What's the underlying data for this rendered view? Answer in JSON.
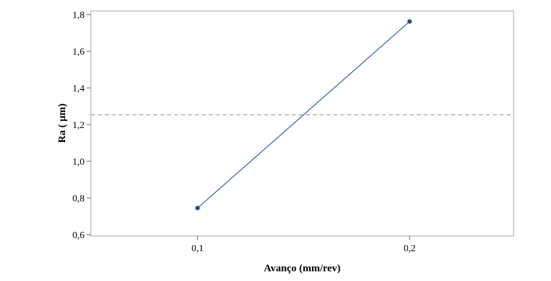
{
  "chart_data": {
    "type": "line",
    "title": "",
    "xlabel": "Avanço (mm/rev)",
    "ylabel": "Ra ( µm)",
    "categories": [
      "0,1",
      "0,2"
    ],
    "values": [
      0.745,
      1.762
    ],
    "ylim": [
      0.6,
      1.8
    ],
    "yticks": [
      0.6,
      0.8,
      1.0,
      1.2,
      1.4,
      1.6,
      1.8
    ],
    "ytick_labels": [
      "0,6",
      "0,8",
      "1,0",
      "1,2",
      "1,4",
      "1,6",
      "1,8"
    ],
    "reference_line": 1.2535,
    "grid": false,
    "line_color": "#2c5f9e",
    "marker_color": "#1f4f8f",
    "reference_color": "#8a8a8a"
  }
}
